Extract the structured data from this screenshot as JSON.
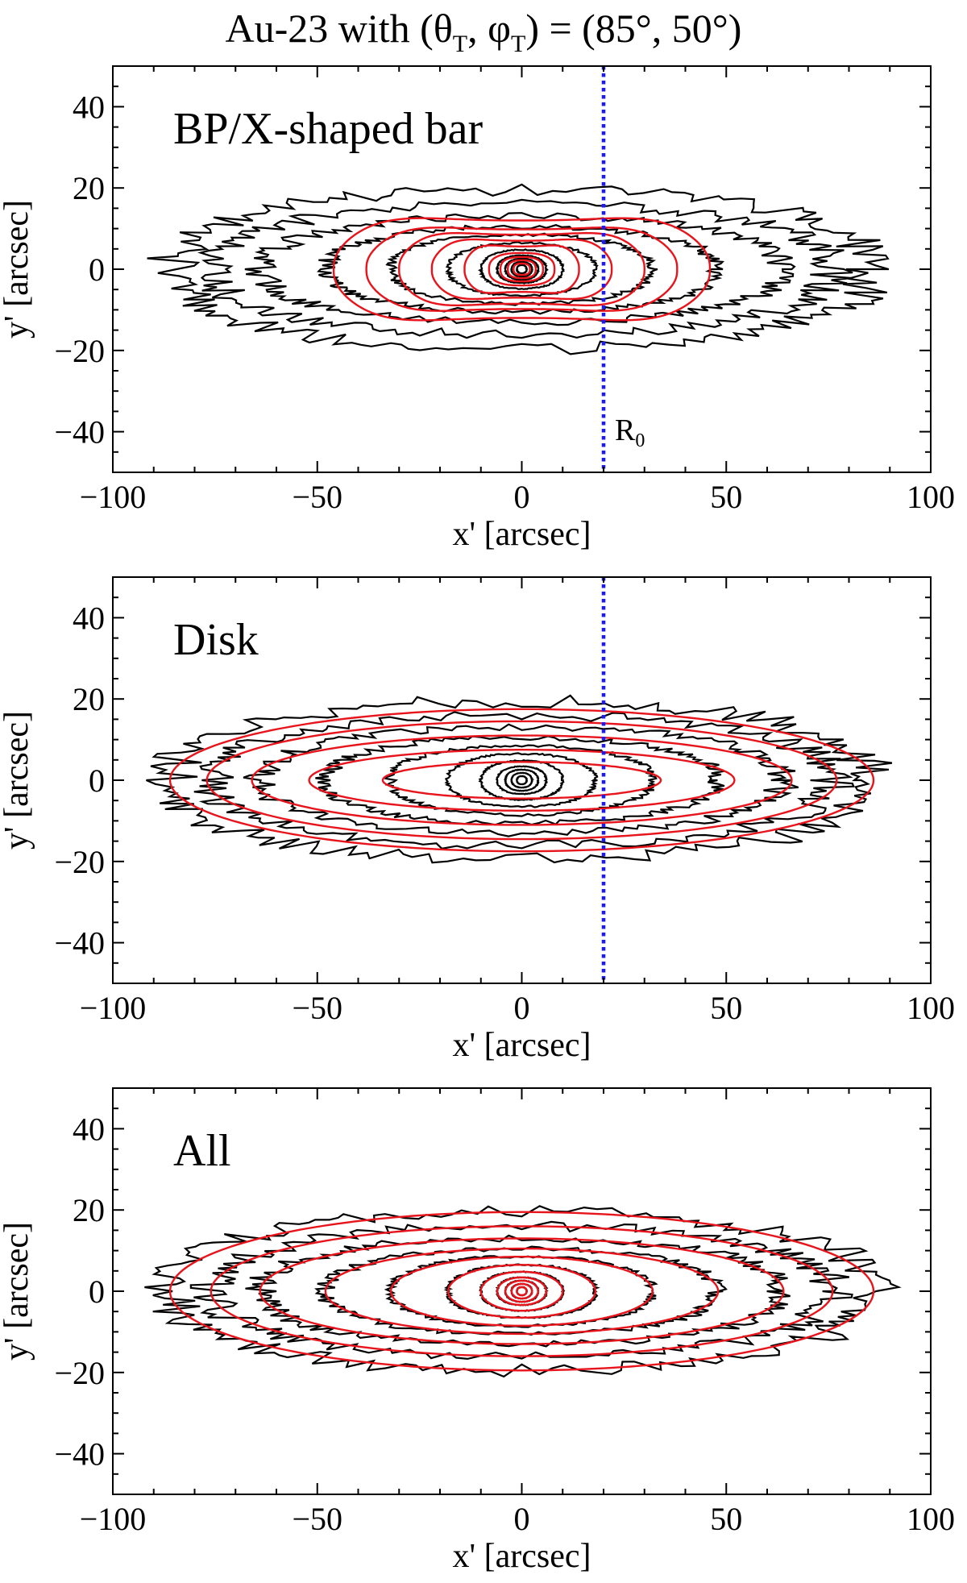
{
  "figure": {
    "title_prefix": "Au-23 with (",
    "theta": "θ",
    "phi": "φ",
    "sub": "T",
    "comma": ",",
    "title_suffix": ") = (85°, 50°)"
  },
  "chart_data": [
    {
      "type": "contour",
      "panel_label": "BP/X-shaped bar",
      "xlabel": "x' [arcsec]",
      "ylabel": "y' [arcsec]",
      "xlim": [
        -100,
        100
      ],
      "ylim": [
        -50,
        50
      ],
      "xticks": [
        -100,
        -50,
        0,
        50,
        100
      ],
      "yticks": [
        -40,
        -20,
        0,
        20,
        40
      ],
      "xtick_labels": [
        "−100",
        "−50",
        "0",
        "50",
        "100"
      ],
      "ytick_labels": [
        "−40",
        "−20",
        "0",
        "20",
        "40"
      ],
      "r0_x": 20,
      "r0_label": "R",
      "r0_sub": "0",
      "black_contours": [
        [
          1.2,
          1.0
        ],
        [
          2.5,
          1.8
        ],
        [
          4,
          2.6
        ],
        [
          6,
          3.4
        ],
        [
          10,
          4.8
        ],
        [
          18,
          6.5
        ],
        [
          32,
          8.5
        ],
        [
          48,
          10.5
        ],
        [
          64,
          13
        ],
        [
          76,
          16
        ],
        [
          86,
          19.5
        ]
      ],
      "red_contours": [
        [
          2,
          1.4
        ],
        [
          3.4,
          2.2
        ],
        [
          5.2,
          3
        ],
        [
          8,
          4
        ],
        [
          14,
          5.6
        ],
        [
          22,
          7
        ],
        [
          30,
          8.5
        ],
        [
          38,
          9.8
        ],
        [
          46,
          12
        ]
      ],
      "red_shape": "boxy-x"
    },
    {
      "type": "contour",
      "panel_label": "Disk",
      "xlabel": "x' [arcsec]",
      "ylabel": "y' [arcsec]",
      "xlim": [
        -100,
        100
      ],
      "ylim": [
        -50,
        50
      ],
      "xticks": [
        -100,
        -50,
        0,
        50,
        100
      ],
      "yticks": [
        -40,
        -20,
        0,
        20,
        40
      ],
      "xtick_labels": [
        "−100",
        "−50",
        "0",
        "50",
        "100"
      ],
      "ytick_labels": [
        "−40",
        "−20",
        "0",
        "20",
        "40"
      ],
      "r0_x": 20,
      "black_contours": [
        [
          1.2,
          1.0
        ],
        [
          2.5,
          1.8
        ],
        [
          4,
          2.6
        ],
        [
          6,
          3.4
        ],
        [
          10,
          4.8
        ],
        [
          18,
          6.5
        ],
        [
          32,
          8.5
        ],
        [
          48,
          10.5
        ],
        [
          64,
          13
        ],
        [
          76,
          16
        ],
        [
          86,
          19.5
        ]
      ],
      "red_contours": [
        [
          34,
          4.5
        ],
        [
          52,
          7.5
        ],
        [
          66,
          11
        ],
        [
          77,
          14.5
        ],
        [
          86,
          17.5
        ]
      ],
      "red_shape": "ellipse"
    },
    {
      "type": "contour",
      "panel_label": "All",
      "xlabel": "x' [arcsec]",
      "ylabel": "y' [arcsec]",
      "xlim": [
        -100,
        100
      ],
      "ylim": [
        -50,
        50
      ],
      "xticks": [
        -100,
        -50,
        0,
        50,
        100
      ],
      "yticks": [
        -40,
        -20,
        0,
        20,
        40
      ],
      "xtick_labels": [
        "−100",
        "−50",
        "0",
        "50",
        "100"
      ],
      "ytick_labels": [
        "−40",
        "−20",
        "0",
        "20",
        "40"
      ],
      "black_contours": [
        [
          1.2,
          1.0
        ],
        [
          2.5,
          1.8
        ],
        [
          4,
          2.6
        ],
        [
          6,
          3.4
        ],
        [
          10,
          4.8
        ],
        [
          18,
          6.5
        ],
        [
          32,
          8.5
        ],
        [
          48,
          10.5
        ],
        [
          64,
          13
        ],
        [
          76,
          16
        ],
        [
          86,
          19.5
        ]
      ],
      "red_contours": [
        [
          1.2,
          1.0
        ],
        [
          2.5,
          1.8
        ],
        [
          4,
          2.6
        ],
        [
          6,
          3.4
        ],
        [
          10,
          4.8
        ],
        [
          18,
          6.5
        ],
        [
          32,
          8.5
        ],
        [
          48,
          10.5
        ],
        [
          64,
          13
        ],
        [
          76,
          16
        ],
        [
          86,
          19.5
        ]
      ],
      "red_shape": "ellipse"
    }
  ],
  "colors": {
    "model_contours": "#e8141c",
    "data_contours": "#000000",
    "r0_line": "#1a1aff"
  }
}
